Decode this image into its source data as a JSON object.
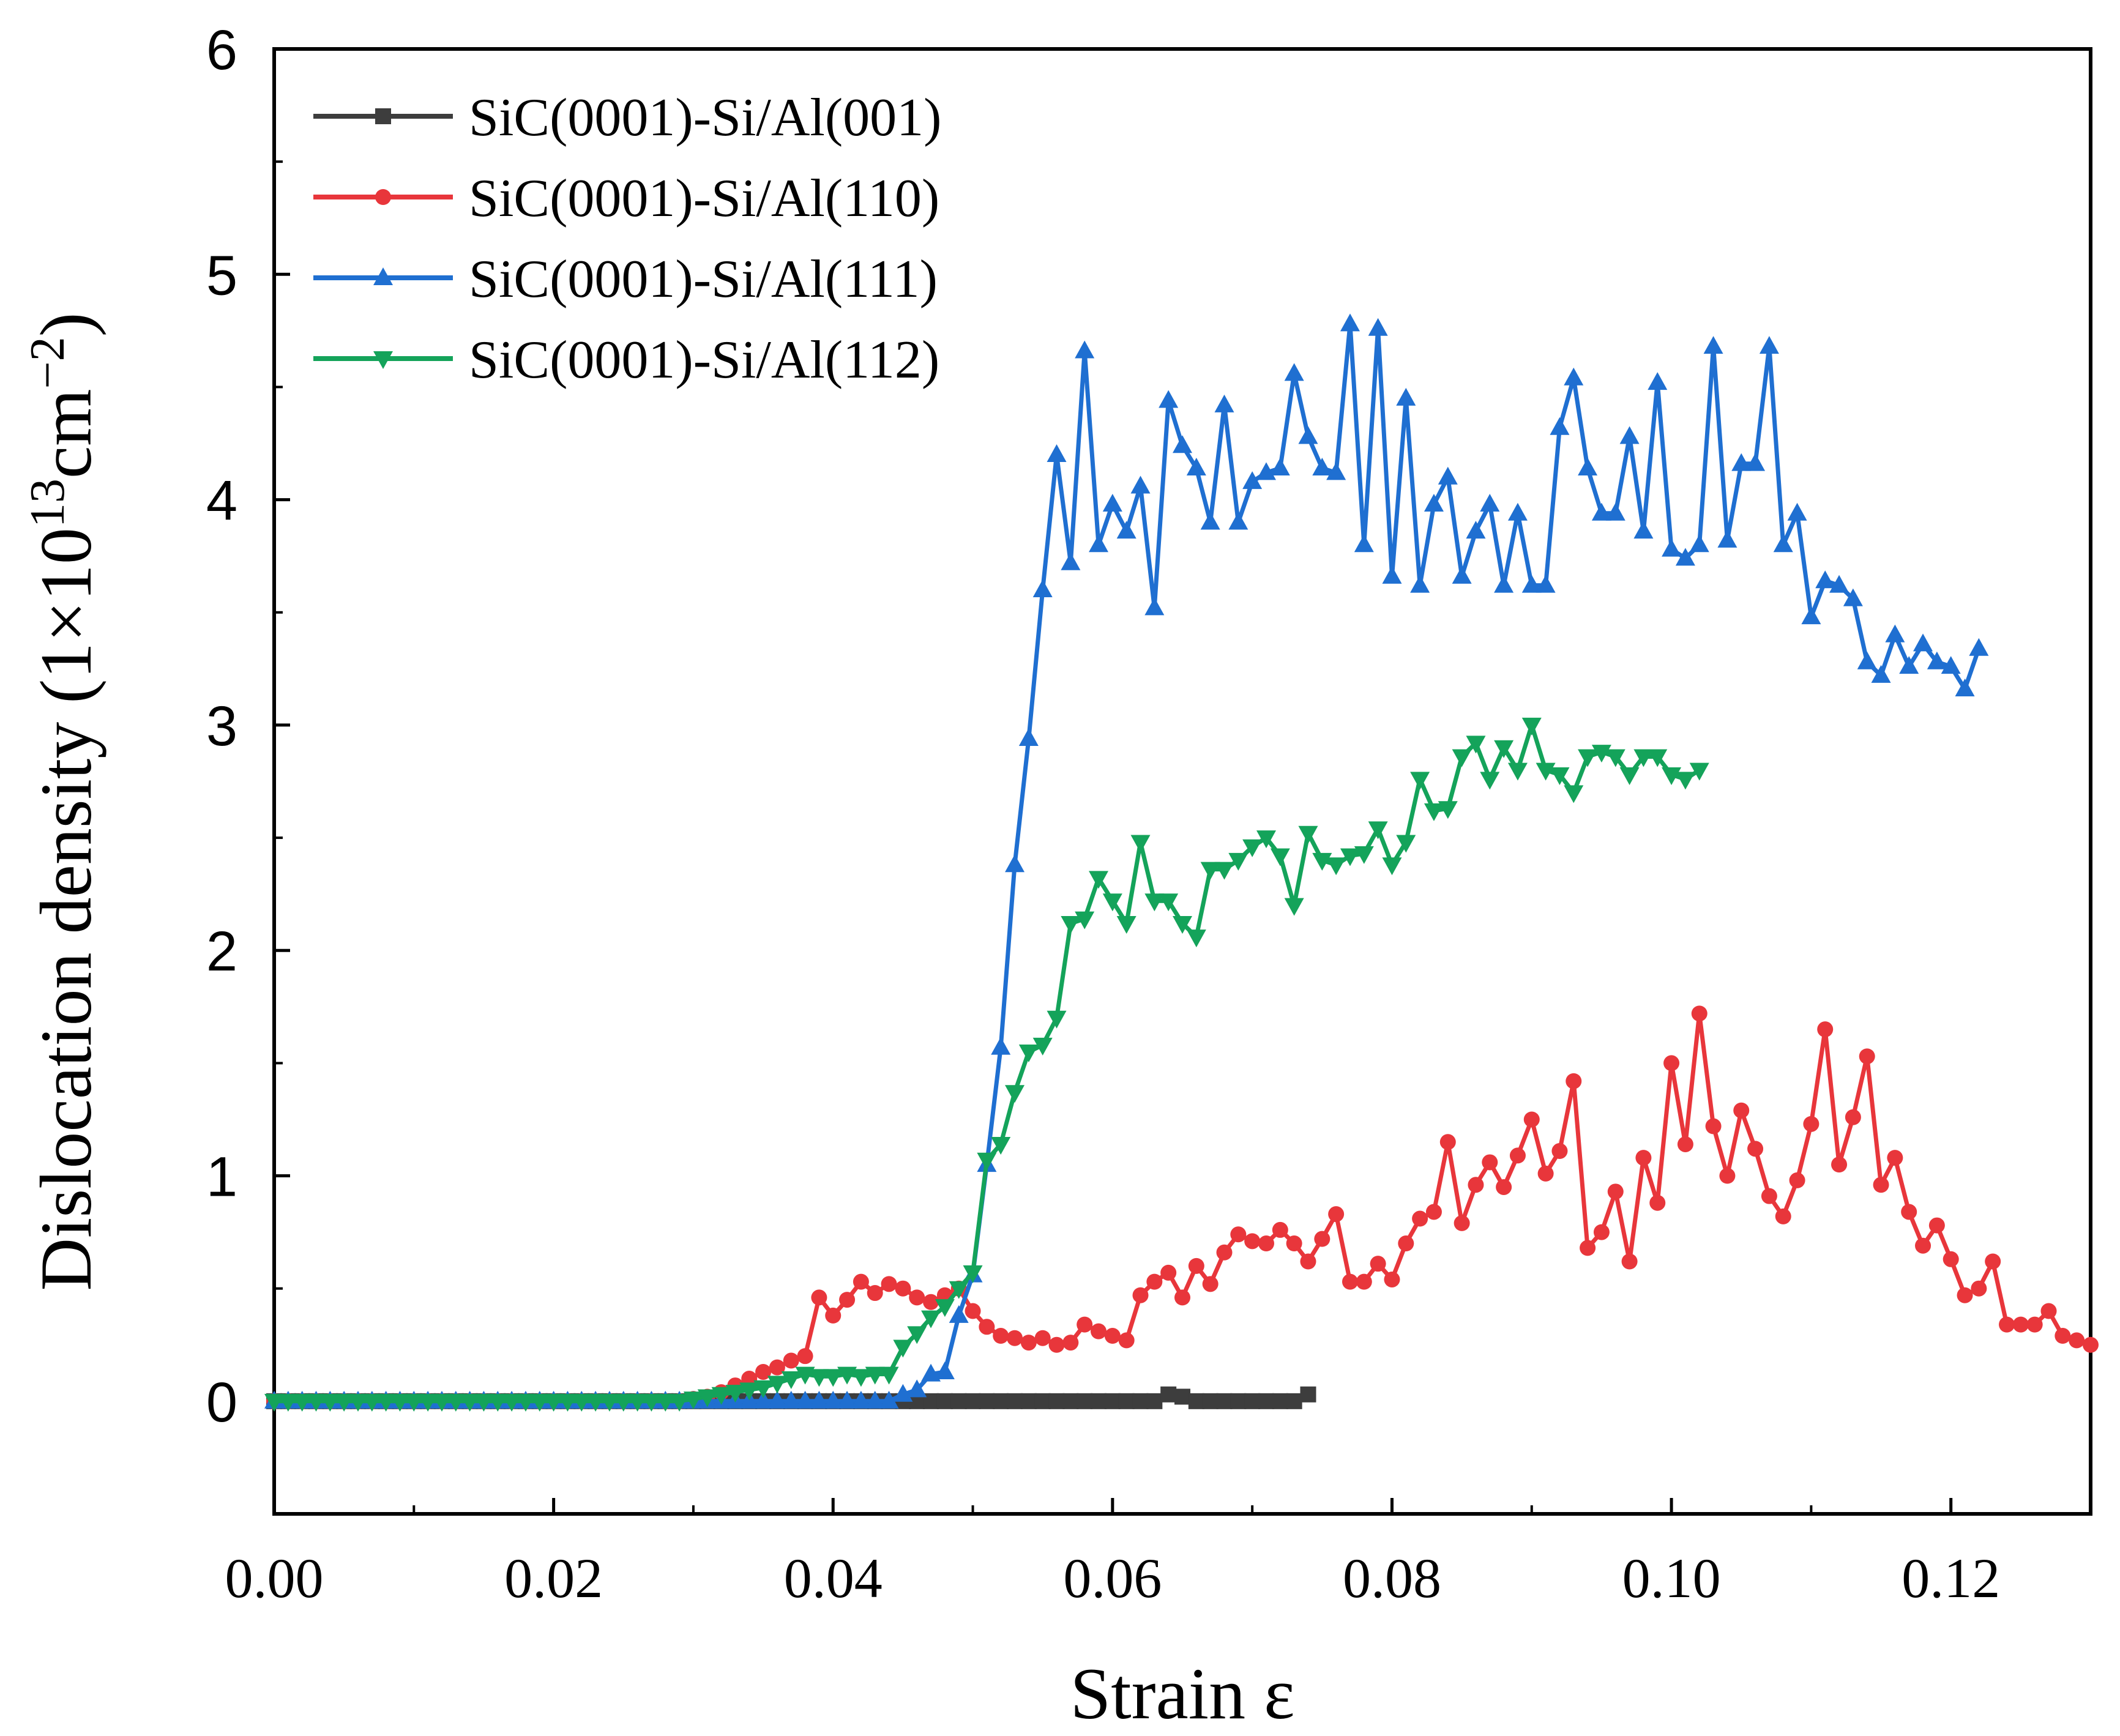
{
  "chart_data": {
    "type": "line",
    "xlabel": "Strain  ε",
    "ylabel_parts": {
      "prefix": "Dislocation density (1×10",
      "exp1": "13",
      "mid": "cm",
      "exp2": "−2",
      "suffix": ")"
    },
    "xlim": [
      0,
      0.13
    ],
    "ylim": [
      -0.5,
      6
    ],
    "xticks": [
      0.0,
      0.02,
      0.04,
      0.06,
      0.08,
      0.1,
      0.12
    ],
    "xtick_labels": [
      "0.00",
      "0.02",
      "0.04",
      "0.06",
      "0.08",
      "0.10",
      "0.12"
    ],
    "yticks": [
      0,
      1,
      2,
      3,
      4,
      5,
      6
    ],
    "ytick_labels": [
      "0",
      "1",
      "2",
      "3",
      "4",
      "5",
      "6"
    ],
    "grid": false,
    "legend_position": "top-left",
    "series": [
      {
        "name": "SiC(0001)-Si/Al(001)",
        "color": "#3d3d3d",
        "marker": "square",
        "x": [
          0.0,
          0.001,
          0.002,
          0.003,
          0.004,
          0.005,
          0.006,
          0.007,
          0.008,
          0.009,
          0.01,
          0.011,
          0.012,
          0.013,
          0.014,
          0.015,
          0.016,
          0.017,
          0.018,
          0.019,
          0.02,
          0.021,
          0.022,
          0.023,
          0.024,
          0.025,
          0.026,
          0.027,
          0.028,
          0.029,
          0.03,
          0.031,
          0.032,
          0.033,
          0.034,
          0.035,
          0.036,
          0.037,
          0.038,
          0.039,
          0.04,
          0.041,
          0.042,
          0.043,
          0.044,
          0.045,
          0.046,
          0.047,
          0.048,
          0.049,
          0.05,
          0.051,
          0.052,
          0.053,
          0.054,
          0.055,
          0.056,
          0.057,
          0.058,
          0.059,
          0.06,
          0.061,
          0.062,
          0.063,
          0.064,
          0.065,
          0.066,
          0.067,
          0.068,
          0.069,
          0.07,
          0.071,
          0.072,
          0.073,
          0.074
        ],
        "y": [
          0,
          0,
          0,
          0,
          0,
          0,
          0,
          0,
          0,
          0,
          0,
          0,
          0,
          0,
          0,
          0,
          0,
          0,
          0,
          0,
          0,
          0,
          0,
          0,
          0,
          0,
          0,
          0,
          0,
          0,
          0,
          0,
          0,
          0,
          0,
          0,
          0,
          0,
          0,
          0,
          0,
          0,
          0,
          0,
          0,
          0,
          0,
          0,
          0,
          0,
          0,
          0,
          0,
          0,
          0,
          0,
          0,
          0,
          0,
          0,
          0,
          0,
          0,
          0,
          0.03,
          0.02,
          0,
          0,
          0,
          0,
          0,
          0,
          0,
          0,
          0.03
        ]
      },
      {
        "name": "SiC(0001)-Si/Al(110)",
        "color": "#e8363b",
        "marker": "circle",
        "x": [
          0.0,
          0.001,
          0.002,
          0.003,
          0.004,
          0.005,
          0.006,
          0.007,
          0.008,
          0.009,
          0.01,
          0.011,
          0.012,
          0.013,
          0.014,
          0.015,
          0.016,
          0.017,
          0.018,
          0.019,
          0.02,
          0.021,
          0.022,
          0.023,
          0.024,
          0.025,
          0.026,
          0.027,
          0.028,
          0.029,
          0.03,
          0.031,
          0.032,
          0.033,
          0.034,
          0.035,
          0.036,
          0.037,
          0.038,
          0.039,
          0.04,
          0.041,
          0.042,
          0.043,
          0.044,
          0.045,
          0.046,
          0.047,
          0.048,
          0.049,
          0.05,
          0.051,
          0.052,
          0.053,
          0.054,
          0.055,
          0.056,
          0.057,
          0.058,
          0.059,
          0.06,
          0.061,
          0.062,
          0.063,
          0.064,
          0.065,
          0.066,
          0.067,
          0.068,
          0.069,
          0.07,
          0.071,
          0.072,
          0.073,
          0.074,
          0.075,
          0.076,
          0.077,
          0.078,
          0.079,
          0.08,
          0.081,
          0.082,
          0.083,
          0.084,
          0.085,
          0.086,
          0.087,
          0.088,
          0.089,
          0.09,
          0.091,
          0.092,
          0.093,
          0.094,
          0.095,
          0.096,
          0.097,
          0.098,
          0.099,
          0.1,
          0.101,
          0.102,
          0.103,
          0.104,
          0.105,
          0.106,
          0.107,
          0.108,
          0.109,
          0.11,
          0.111,
          0.112,
          0.113,
          0.114,
          0.115,
          0.116,
          0.117,
          0.118,
          0.119,
          0.12,
          0.121,
          0.122,
          0.123,
          0.124,
          0.125,
          0.126,
          0.127,
          0.128,
          0.129,
          0.13
        ],
        "y": [
          0,
          0,
          0,
          0,
          0,
          0,
          0,
          0,
          0,
          0,
          0,
          0,
          0,
          0,
          0,
          0,
          0,
          0,
          0,
          0,
          0,
          0,
          0,
          0,
          0,
          0,
          0,
          0,
          0,
          0,
          0.01,
          0.02,
          0.04,
          0.07,
          0.1,
          0.13,
          0.15,
          0.18,
          0.2,
          0.46,
          0.38,
          0.45,
          0.53,
          0.48,
          0.52,
          0.5,
          0.46,
          0.44,
          0.47,
          0.5,
          0.4,
          0.33,
          0.29,
          0.28,
          0.26,
          0.28,
          0.25,
          0.26,
          0.34,
          0.31,
          0.29,
          0.27,
          0.47,
          0.53,
          0.57,
          0.46,
          0.6,
          0.52,
          0.66,
          0.74,
          0.71,
          0.7,
          0.76,
          0.7,
          0.62,
          0.72,
          0.83,
          0.53,
          0.53,
          0.61,
          0.54,
          0.7,
          0.81,
          0.84,
          1.15,
          0.79,
          0.96,
          1.06,
          0.95,
          1.09,
          1.25,
          1.01,
          1.11,
          1.42,
          0.68,
          0.75,
          0.93,
          0.62,
          1.08,
          0.88,
          1.5,
          1.14,
          1.72,
          1.22,
          1.0,
          1.29,
          1.12,
          0.91,
          0.82,
          0.98,
          1.23,
          1.65,
          1.05,
          1.26,
          1.53,
          0.96,
          1.08,
          0.84,
          0.69,
          0.78,
          0.63,
          0.47,
          0.5,
          0.62,
          0.34,
          0.34,
          0.34,
          0.4,
          0.29,
          0.27,
          0.25
        ]
      },
      {
        "name": "SiC(0001)-Si/Al(111)",
        "color": "#1f6fd1",
        "marker": "triangle-up",
        "x": [
          0.0,
          0.001,
          0.002,
          0.003,
          0.004,
          0.005,
          0.006,
          0.007,
          0.008,
          0.009,
          0.01,
          0.011,
          0.012,
          0.013,
          0.014,
          0.015,
          0.016,
          0.017,
          0.018,
          0.019,
          0.02,
          0.021,
          0.022,
          0.023,
          0.024,
          0.025,
          0.026,
          0.027,
          0.028,
          0.029,
          0.03,
          0.031,
          0.032,
          0.033,
          0.034,
          0.035,
          0.036,
          0.037,
          0.038,
          0.039,
          0.04,
          0.041,
          0.042,
          0.043,
          0.044,
          0.045,
          0.046,
          0.047,
          0.048,
          0.049,
          0.05,
          0.051,
          0.052,
          0.053,
          0.054,
          0.055,
          0.056,
          0.057,
          0.058,
          0.059,
          0.06,
          0.061,
          0.062,
          0.063,
          0.064,
          0.065,
          0.066,
          0.067,
          0.068,
          0.069,
          0.07,
          0.071,
          0.072,
          0.073,
          0.074,
          0.075,
          0.076,
          0.077,
          0.078,
          0.079,
          0.08,
          0.081,
          0.082,
          0.083,
          0.084,
          0.085,
          0.086,
          0.087,
          0.088,
          0.089,
          0.09,
          0.091,
          0.092,
          0.093,
          0.094,
          0.095,
          0.096,
          0.097,
          0.098,
          0.099,
          0.1,
          0.101,
          0.102,
          0.103,
          0.104,
          0.105,
          0.106,
          0.107,
          0.108,
          0.109,
          0.11,
          0.111,
          0.112,
          0.113,
          0.114,
          0.115,
          0.116,
          0.117,
          0.118,
          0.119,
          0.12,
          0.121,
          0.122
        ],
        "y": [
          0,
          0,
          0,
          0,
          0,
          0,
          0,
          0,
          0,
          0,
          0,
          0,
          0,
          0,
          0,
          0,
          0,
          0,
          0,
          0,
          0,
          0,
          0,
          0,
          0,
          0,
          0,
          0,
          0,
          0,
          0,
          0,
          0,
          0,
          0,
          0,
          0,
          0,
          0,
          0,
          0,
          0,
          0,
          0,
          0,
          0.03,
          0.05,
          0.12,
          0.13,
          0.38,
          0.56,
          1.05,
          1.57,
          2.38,
          2.94,
          3.6,
          4.2,
          3.72,
          4.66,
          3.8,
          3.98,
          3.86,
          4.06,
          3.52,
          4.44,
          4.24,
          4.14,
          3.9,
          4.42,
          3.9,
          4.08,
          4.12,
          4.14,
          4.56,
          4.28,
          4.14,
          4.12,
          4.78,
          3.8,
          4.76,
          3.66,
          4.45,
          3.62,
          3.98,
          4.1,
          3.66,
          3.86,
          3.98,
          3.62,
          3.94,
          3.62,
          3.62,
          4.32,
          4.54,
          4.14,
          3.94,
          3.94,
          4.28,
          3.86,
          4.52,
          3.78,
          3.74,
          3.8,
          4.68,
          3.82,
          4.16,
          4.16,
          4.68,
          3.8,
          3.94,
          3.48,
          3.64,
          3.62,
          3.56,
          3.28,
          3.22,
          3.4,
          3.26,
          3.36,
          3.28,
          3.26,
          3.16,
          3.34
        ]
      },
      {
        "name": "SiC(0001)-Si/Al(112)",
        "color": "#14a35a",
        "marker": "triangle-down",
        "x": [
          0.0,
          0.001,
          0.002,
          0.003,
          0.004,
          0.005,
          0.006,
          0.007,
          0.008,
          0.009,
          0.01,
          0.011,
          0.012,
          0.013,
          0.014,
          0.015,
          0.016,
          0.017,
          0.018,
          0.019,
          0.02,
          0.021,
          0.022,
          0.023,
          0.024,
          0.025,
          0.026,
          0.027,
          0.028,
          0.029,
          0.03,
          0.031,
          0.032,
          0.033,
          0.034,
          0.035,
          0.036,
          0.037,
          0.038,
          0.039,
          0.04,
          0.041,
          0.042,
          0.043,
          0.044,
          0.045,
          0.046,
          0.047,
          0.048,
          0.049,
          0.05,
          0.051,
          0.052,
          0.053,
          0.054,
          0.055,
          0.056,
          0.057,
          0.058,
          0.059,
          0.06,
          0.061,
          0.062,
          0.063,
          0.064,
          0.065,
          0.066,
          0.067,
          0.068,
          0.069,
          0.07,
          0.071,
          0.072,
          0.073,
          0.074,
          0.075,
          0.076,
          0.077,
          0.078,
          0.079,
          0.08,
          0.081,
          0.082,
          0.083,
          0.084,
          0.085,
          0.086,
          0.087,
          0.088,
          0.089,
          0.09,
          0.091,
          0.092,
          0.093,
          0.094,
          0.095,
          0.096,
          0.097,
          0.098,
          0.099,
          0.1,
          0.101,
          0.102
        ],
        "y": [
          0,
          0,
          0,
          0,
          0,
          0,
          0,
          0,
          0,
          0,
          0,
          0,
          0,
          0,
          0,
          0,
          0,
          0,
          0,
          0,
          0,
          0,
          0,
          0,
          0,
          0,
          0,
          0,
          0,
          0,
          0.01,
          0.02,
          0.03,
          0.04,
          0.05,
          0.06,
          0.08,
          0.1,
          0.12,
          0.11,
          0.11,
          0.12,
          0.11,
          0.12,
          0.12,
          0.24,
          0.3,
          0.37,
          0.42,
          0.5,
          0.57,
          1.07,
          1.14,
          1.37,
          1.55,
          1.58,
          1.7,
          2.12,
          2.14,
          2.32,
          2.22,
          2.12,
          2.48,
          2.22,
          2.22,
          2.12,
          2.06,
          2.36,
          2.36,
          2.4,
          2.46,
          2.5,
          2.42,
          2.2,
          2.52,
          2.4,
          2.38,
          2.42,
          2.43,
          2.54,
          2.38,
          2.48,
          2.76,
          2.62,
          2.63,
          2.86,
          2.92,
          2.76,
          2.9,
          2.8,
          3.0,
          2.8,
          2.78,
          2.7,
          2.86,
          2.88,
          2.86,
          2.78,
          2.86,
          2.86,
          2.78,
          2.76,
          2.8
        ]
      }
    ]
  }
}
